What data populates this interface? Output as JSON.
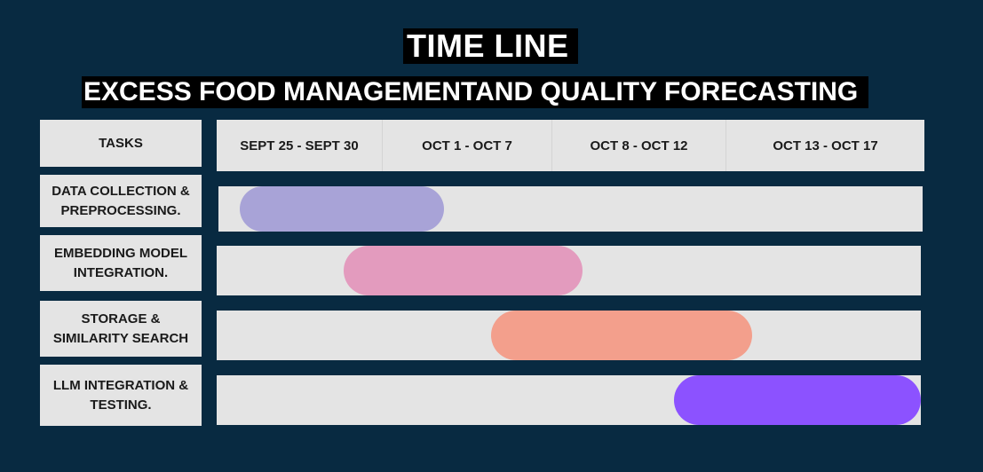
{
  "title": "TIME LINE",
  "subtitle": "EXCESS FOOD MANAGEMENTAND QUALITY FORECASTING",
  "tasks_header": "TASKS",
  "periods": [
    "SEPT 25 - SEPT 30",
    "OCT 1 - OCT 7",
    "OCT 8 - OCT 12",
    "OCT 13 - OCT 17"
  ],
  "tasks": [
    {
      "label": "DATA COLLECTION & PREPROCESSING.",
      "color": "#a8a3d7",
      "start": 0.03,
      "end": 0.32
    },
    {
      "label": "EMBEDDING MODEL INTEGRATION.",
      "color": "#e39bbe",
      "start": 0.18,
      "end": 0.52
    },
    {
      "label": "STORAGE & SIMILARITY SEARCH",
      "color": "#f39f8c",
      "start": 0.39,
      "end": 0.76
    },
    {
      "label": "LLM INTEGRATION & TESTING.",
      "color": "#8c52ff",
      "start": 0.65,
      "end": 1.0
    }
  ]
}
